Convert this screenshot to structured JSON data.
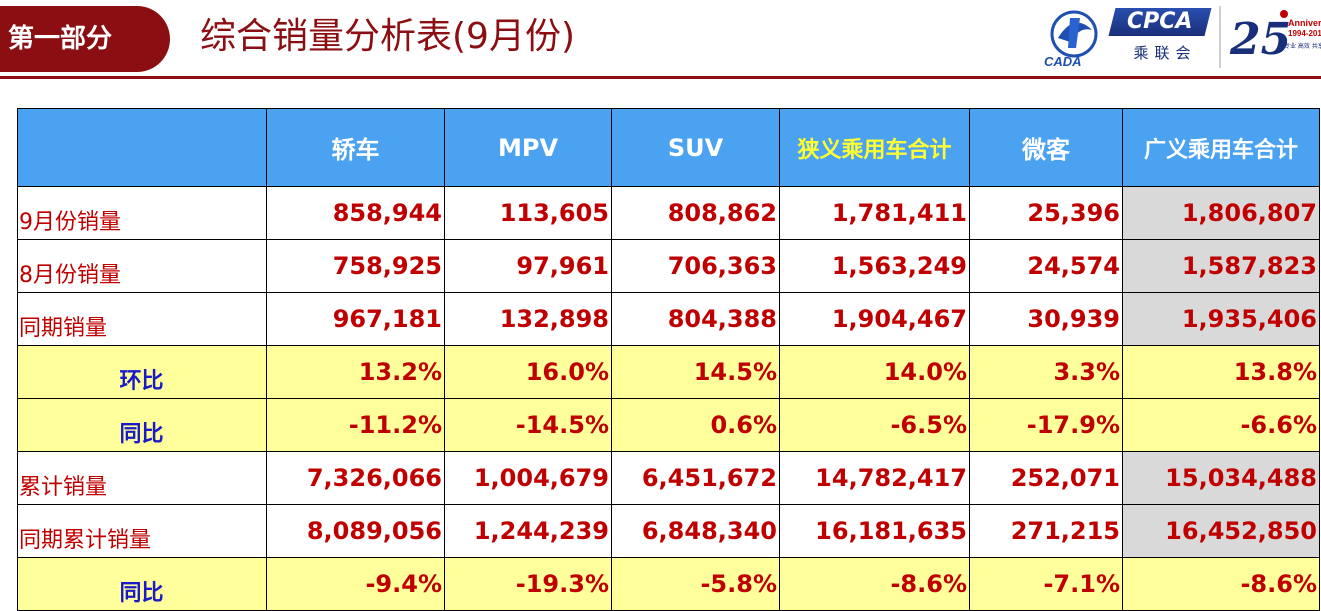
{
  "header": {
    "section": "第一部分",
    "title": "综合销量分析表(9月份)",
    "logos": {
      "cada_text": "CADA",
      "cpca_text": "CPCA",
      "cpca_cn": "乘联会",
      "anniversary_number": "25",
      "anniversary_text": "Anniver",
      "anniversary_years": "1994-201",
      "anniversary_sub": "专业 高效 共享"
    }
  },
  "colors": {
    "accent": "#8b0e12",
    "header_blue": "#4aa2f0",
    "highlight_yellow": "#ffff33",
    "value_red": "#c00000",
    "ratio_blue": "#1a1ac8",
    "ratio_row_bg": "#ffff9c",
    "total_col_bg": "#d9d9d9"
  },
  "table": {
    "columns": [
      "",
      "轿车",
      "MPV",
      "SUV",
      "狭义乘用车合计",
      "微客",
      "广义乘用车合计"
    ],
    "rows": [
      {
        "label": "9月份销量",
        "values": [
          "858,944",
          "113,605",
          "808,862",
          "1,781,411",
          "25,396",
          "1,806,807"
        ]
      },
      {
        "label": "8月份销量",
        "values": [
          "758,925",
          "97,961",
          "706,363",
          "1,563,249",
          "24,574",
          "1,587,823"
        ]
      },
      {
        "label": "同期销量",
        "values": [
          "967,181",
          "132,898",
          "804,388",
          "1,904,467",
          "30,939",
          "1,935,406"
        ]
      },
      {
        "label": "环比",
        "values": [
          "13.2%",
          "16.0%",
          "14.5%",
          "14.0%",
          "3.3%",
          "13.8%"
        ]
      },
      {
        "label": "同比",
        "values": [
          "-11.2%",
          "-14.5%",
          "0.6%",
          "-6.5%",
          "-17.9%",
          "-6.6%"
        ]
      },
      {
        "label": "累计销量",
        "values": [
          "7,326,066",
          "1,004,679",
          "6,451,672",
          "14,782,417",
          "252,071",
          "15,034,488"
        ]
      },
      {
        "label": "同期累计销量",
        "values": [
          "8,089,056",
          "1,244,239",
          "6,848,340",
          "16,181,635",
          "271,215",
          "16,452,850"
        ]
      },
      {
        "label": "同比",
        "values": [
          "-9.4%",
          "-19.3%",
          "-5.8%",
          "-8.6%",
          "-7.1%",
          "-8.6%"
        ]
      }
    ]
  }
}
